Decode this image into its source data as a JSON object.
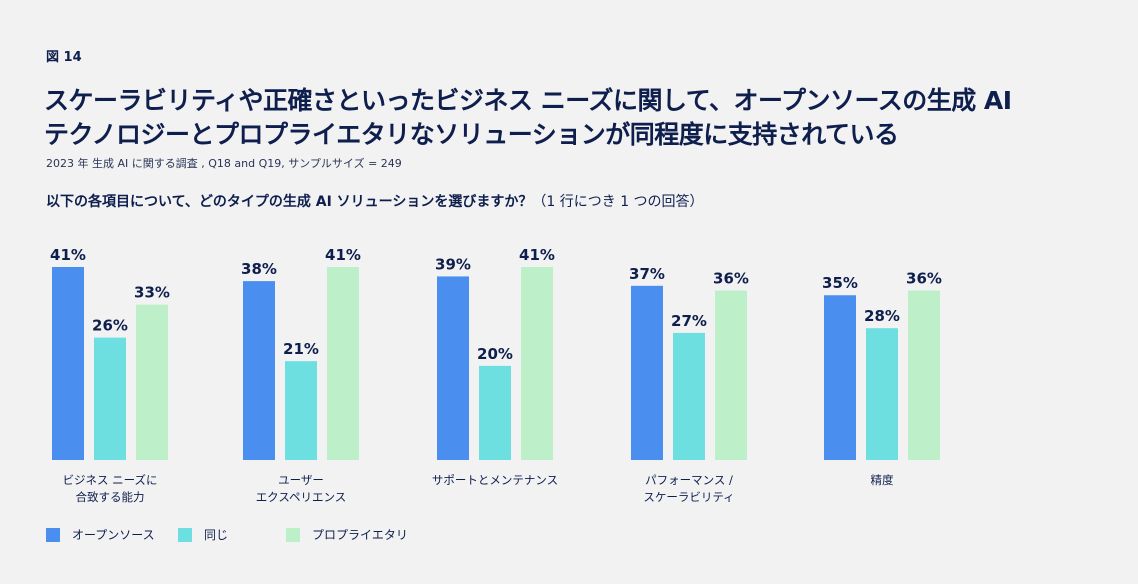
{
  "figure_label": "図 14",
  "title_lines": [
    "スケーラビリティや正確さといったビジネス ニーズに関して、オープンソースの生成 AI",
    "テクノロジーとプロプライエタリなソリューションが同程度に支持されている"
  ],
  "subtitle": "2023 年 生成 AI に関する調査 , Q18 and Q19, サンプルサイズ = 249",
  "question_bold": "以下の各項目について、どのタイプの生成 AI ソリューションを選びますか？",
  "question_note": "（1 行につき 1 つの回答）",
  "chart_data": {
    "type": "bar",
    "categories": [
      "ビジネス ニーズに\n合致する能力",
      "ユーザー\nエクスペリエンス",
      "サポートとメンテナンス",
      "パフォーマンス /\nスケーラビリティ",
      "精度"
    ],
    "series": [
      {
        "name": "オープンソース",
        "color": "#4a8ff0",
        "values": [
          41,
          38,
          39,
          37,
          35
        ]
      },
      {
        "name": "同じ",
        "color": "#6ddfe0",
        "values": [
          26,
          21,
          20,
          27,
          28
        ]
      },
      {
        "name": "プロプライエタリ",
        "color": "#bdf0c8",
        "values": [
          33,
          41,
          41,
          36,
          36
        ]
      }
    ],
    "value_suffix": "%",
    "ylim": [
      0,
      41
    ],
    "legend_position": "bottom-left",
    "grid": false
  }
}
